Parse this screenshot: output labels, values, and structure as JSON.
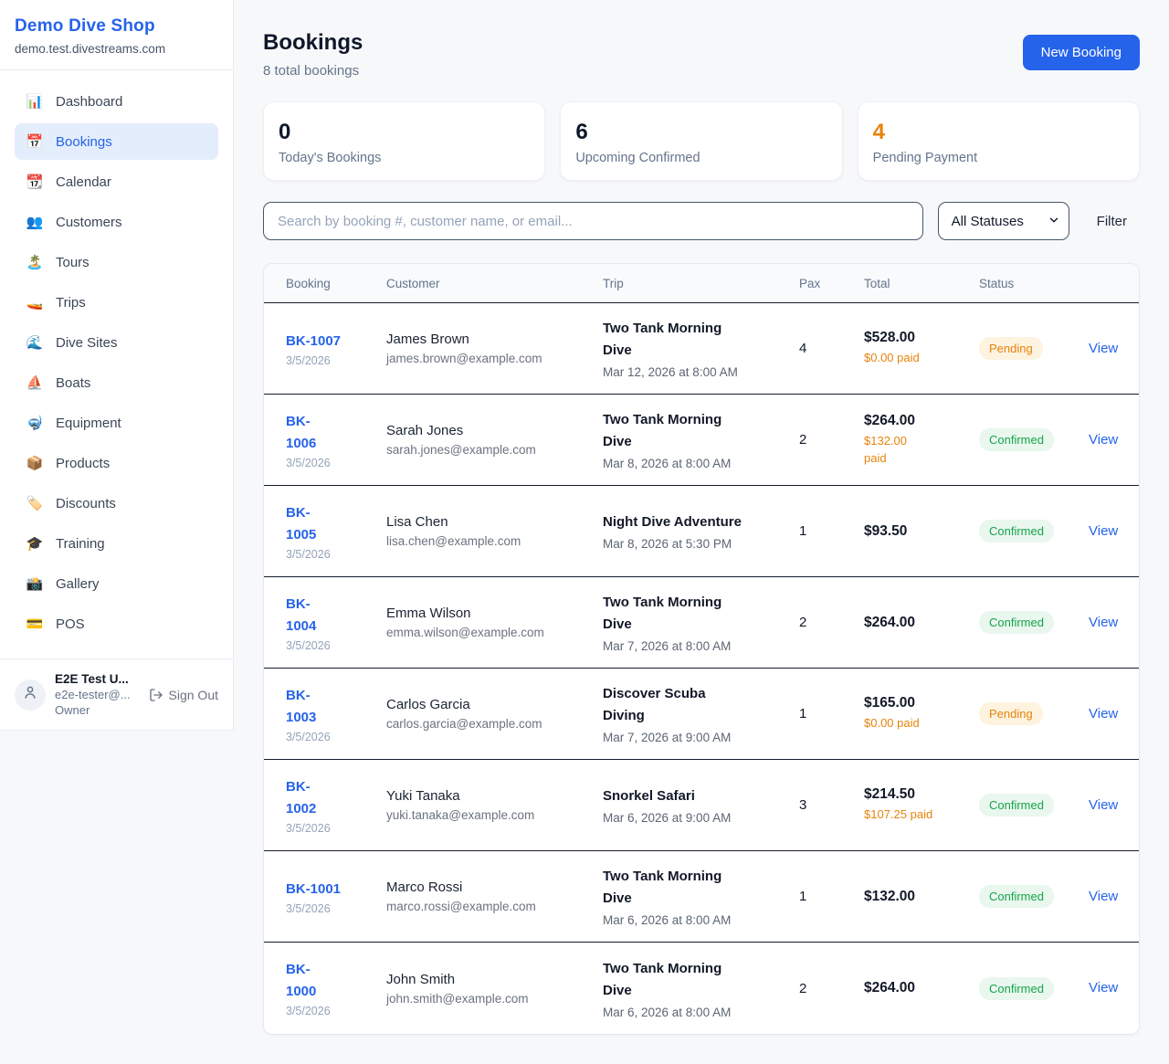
{
  "colors": {
    "accent_blue": "#2563eb",
    "pending_orange": "#e8830c",
    "confirmed_green": "#16a34a",
    "pending_badge_bg": "#fdf3df",
    "confirmed_badge_bg": "#e9f7ee",
    "dark_text": "#0f172a"
  },
  "sidebar": {
    "brand": {
      "name": "Demo Dive Shop",
      "domain": "demo.test.divestreams.com"
    },
    "nav": [
      {
        "name": "dashboard",
        "icon": "bar-chart",
        "glyph": "📊",
        "label": "Dashboard",
        "active": false
      },
      {
        "name": "bookings",
        "icon": "calendar",
        "glyph": "📅",
        "label": "Bookings",
        "active": true
      },
      {
        "name": "calendar",
        "icon": "tear-calendar",
        "glyph": "📆",
        "label": "Calendar",
        "active": false
      },
      {
        "name": "customers",
        "icon": "people",
        "glyph": "👥",
        "label": "Customers",
        "active": false
      },
      {
        "name": "tours",
        "icon": "island",
        "glyph": "🏝️",
        "label": "Tours",
        "active": false
      },
      {
        "name": "trips",
        "icon": "speedboat",
        "glyph": "🚤",
        "label": "Trips",
        "active": false
      },
      {
        "name": "dive-sites",
        "icon": "wave",
        "glyph": "🌊",
        "label": "Dive Sites",
        "active": false
      },
      {
        "name": "boats",
        "icon": "sailboat",
        "glyph": "⛵",
        "label": "Boats",
        "active": false
      },
      {
        "name": "equipment",
        "icon": "diving-mask",
        "glyph": "🤿",
        "label": "Equipment",
        "active": false
      },
      {
        "name": "products",
        "icon": "package",
        "glyph": "📦",
        "label": "Products",
        "active": false
      },
      {
        "name": "discounts",
        "icon": "tag",
        "glyph": "🏷️",
        "label": "Discounts",
        "active": false
      },
      {
        "name": "training",
        "icon": "graduation-cap",
        "glyph": "🎓",
        "label": "Training",
        "active": false
      },
      {
        "name": "gallery",
        "icon": "camera",
        "glyph": "📸",
        "label": "Gallery",
        "active": false
      },
      {
        "name": "pos",
        "icon": "credit-card",
        "glyph": "💳",
        "label": "POS",
        "active": false
      }
    ],
    "user": {
      "name": "E2E Test U...",
      "email": "e2e-tester@...",
      "role": "Owner",
      "sign_out": "Sign Out"
    }
  },
  "header": {
    "title": "Bookings",
    "subtitle": "8 total bookings",
    "new_booking_label": "New Booking"
  },
  "stats": [
    {
      "value": "0",
      "label": "Today's Bookings",
      "color": "#0f172a"
    },
    {
      "value": "6",
      "label": "Upcoming Confirmed",
      "color": "#0f172a"
    },
    {
      "value": "4",
      "label": "Pending Payment",
      "color": "#e8830c"
    }
  ],
  "controls": {
    "search_placeholder": "Search by booking #, customer name, or email...",
    "status_filter_value": "All Statuses",
    "filter_label": "Filter"
  },
  "table": {
    "columns": [
      "Booking",
      "Customer",
      "Trip",
      "Pax",
      "Total",
      "Status"
    ],
    "rows": [
      {
        "id": "BK-1007",
        "id_two_lines": false,
        "date": "3/5/2026",
        "customer": "James Brown",
        "email": "james.brown@example.com",
        "trip": "Two Tank Morning Dive",
        "trip_two_lines": true,
        "trip_datetime": "Mar 12, 2026 at 8:00 AM",
        "pax": "4",
        "total": "$528.00",
        "paid": "$0.00 paid",
        "paid_two_lines": false,
        "status": "Pending",
        "action": "View"
      },
      {
        "id": "BK-1006",
        "id_two_lines": true,
        "date": "3/5/2026",
        "customer": "Sarah Jones",
        "email": "sarah.jones@example.com",
        "trip": "Two Tank Morning Dive",
        "trip_two_lines": true,
        "trip_datetime": "Mar 8, 2026 at 8:00 AM",
        "pax": "2",
        "total": "$264.00",
        "paid": "$132.00 paid",
        "paid_two_lines": true,
        "status": "Confirmed",
        "action": "View"
      },
      {
        "id": "BK-1005",
        "id_two_lines": true,
        "date": "3/5/2026",
        "customer": "Lisa Chen",
        "email": "lisa.chen@example.com",
        "trip": "Night Dive Adventure",
        "trip_two_lines": false,
        "trip_datetime": "Mar 8, 2026 at 5:30 PM",
        "pax": "1",
        "total": "$93.50",
        "paid": "",
        "paid_two_lines": false,
        "status": "Confirmed",
        "action": "View"
      },
      {
        "id": "BK-1004",
        "id_two_lines": true,
        "date": "3/5/2026",
        "customer": "Emma Wilson",
        "email": "emma.wilson@example.com",
        "trip": "Two Tank Morning Dive",
        "trip_two_lines": true,
        "trip_datetime": "Mar 7, 2026 at 8:00 AM",
        "pax": "2",
        "total": "$264.00",
        "paid": "",
        "paid_two_lines": false,
        "status": "Confirmed",
        "action": "View"
      },
      {
        "id": "BK-1003",
        "id_two_lines": true,
        "date": "3/5/2026",
        "customer": "Carlos Garcia",
        "email": "carlos.garcia@example.com",
        "trip": "Discover Scuba Diving",
        "trip_two_lines": true,
        "trip_datetime": "Mar 7, 2026 at 9:00 AM",
        "pax": "1",
        "total": "$165.00",
        "paid": "$0.00 paid",
        "paid_two_lines": false,
        "status": "Pending",
        "action": "View"
      },
      {
        "id": "BK-1002",
        "id_two_lines": true,
        "date": "3/5/2026",
        "customer": "Yuki Tanaka",
        "email": "yuki.tanaka@example.com",
        "trip": "Snorkel Safari",
        "trip_two_lines": false,
        "trip_datetime": "Mar 6, 2026 at 9:00 AM",
        "pax": "3",
        "total": "$214.50",
        "paid": "$107.25 paid",
        "paid_two_lines": false,
        "status": "Confirmed",
        "action": "View"
      },
      {
        "id": "BK-1001",
        "id_two_lines": false,
        "date": "3/5/2026",
        "customer": "Marco Rossi",
        "email": "marco.rossi@example.com",
        "trip": "Two Tank Morning Dive",
        "trip_two_lines": true,
        "trip_datetime": "Mar 6, 2026 at 8:00 AM",
        "pax": "1",
        "total": "$132.00",
        "paid": "",
        "paid_two_lines": false,
        "status": "Confirmed",
        "action": "View"
      },
      {
        "id": "BK-1000",
        "id_two_lines": true,
        "date": "3/5/2026",
        "customer": "John Smith",
        "email": "john.smith@example.com",
        "trip": "Two Tank Morning Dive",
        "trip_two_lines": true,
        "trip_datetime": "Mar 6, 2026 at 8:00 AM",
        "pax": "2",
        "total": "$264.00",
        "paid": "",
        "paid_two_lines": false,
        "status": "Confirmed",
        "action": "View"
      }
    ]
  }
}
